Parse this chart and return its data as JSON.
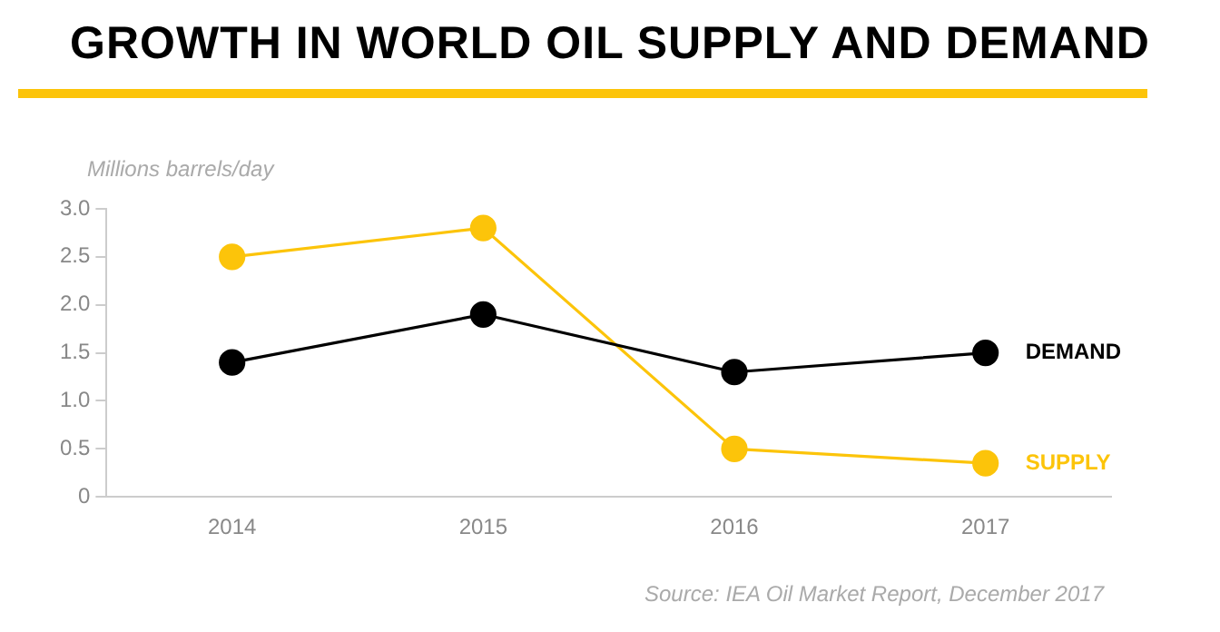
{
  "chart_data": {
    "type": "line",
    "title": "GROWTH IN WORLD OIL SUPPLY AND DEMAND",
    "ylabel": "Millions barrels/day",
    "categories": [
      "2014",
      "2015",
      "2016",
      "2017"
    ],
    "series": [
      {
        "name": "DEMAND",
        "color": "#000000",
        "values": [
          1.4,
          1.9,
          1.3,
          1.5
        ]
      },
      {
        "name": "SUPPLY",
        "color": "#fcc40a",
        "values": [
          2.5,
          2.8,
          0.5,
          0.35
        ]
      }
    ],
    "ylim": [
      0,
      3
    ],
    "yticks": [
      0,
      0.5,
      {
        "value": 1,
        "label": "1.0"
      },
      1.5,
      {
        "value": 2,
        "label": "2.0"
      },
      2.5,
      {
        "value": 3,
        "label": "3.0"
      }
    ],
    "legend": false,
    "marker": "circle",
    "line_style": "solid",
    "annotations": [
      "Source: IEA Oil Market Report, December 2017"
    ]
  }
}
